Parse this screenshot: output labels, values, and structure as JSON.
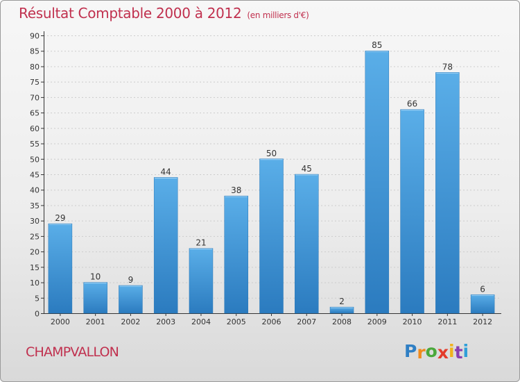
{
  "chart_data": {
    "type": "bar",
    "title": "Résultat Comptable 2000 à 2012",
    "subtitle": "(en milliers d'€)",
    "categories": [
      "2000",
      "2001",
      "2002",
      "2003",
      "2004",
      "2005",
      "2006",
      "2007",
      "2008",
      "2009",
      "2010",
      "2011",
      "2012"
    ],
    "values": [
      29,
      10,
      9,
      44,
      21,
      38,
      50,
      45,
      2,
      85,
      66,
      78,
      6
    ],
    "ylim": [
      0,
      90
    ],
    "yticks": [
      0,
      5,
      10,
      15,
      20,
      25,
      30,
      35,
      40,
      45,
      50,
      55,
      60,
      65,
      70,
      75,
      80,
      85,
      90
    ],
    "xlabel": "",
    "ylabel": "",
    "grid": true,
    "bar_color": "#3d8fd0"
  },
  "commune": "CHAMPVALLON",
  "logo": {
    "letters": [
      "P",
      "r",
      "o",
      "x",
      "i",
      "t",
      "i"
    ],
    "colors": [
      "#2f7fc4",
      "#f08a1c",
      "#4aa83b",
      "#e33b2a",
      "#f0b21c",
      "#8a3fb0",
      "#2f9fd8"
    ]
  },
  "colors": {
    "title": "#c0304e",
    "axis": "#333333",
    "grid": "#cccccc"
  }
}
